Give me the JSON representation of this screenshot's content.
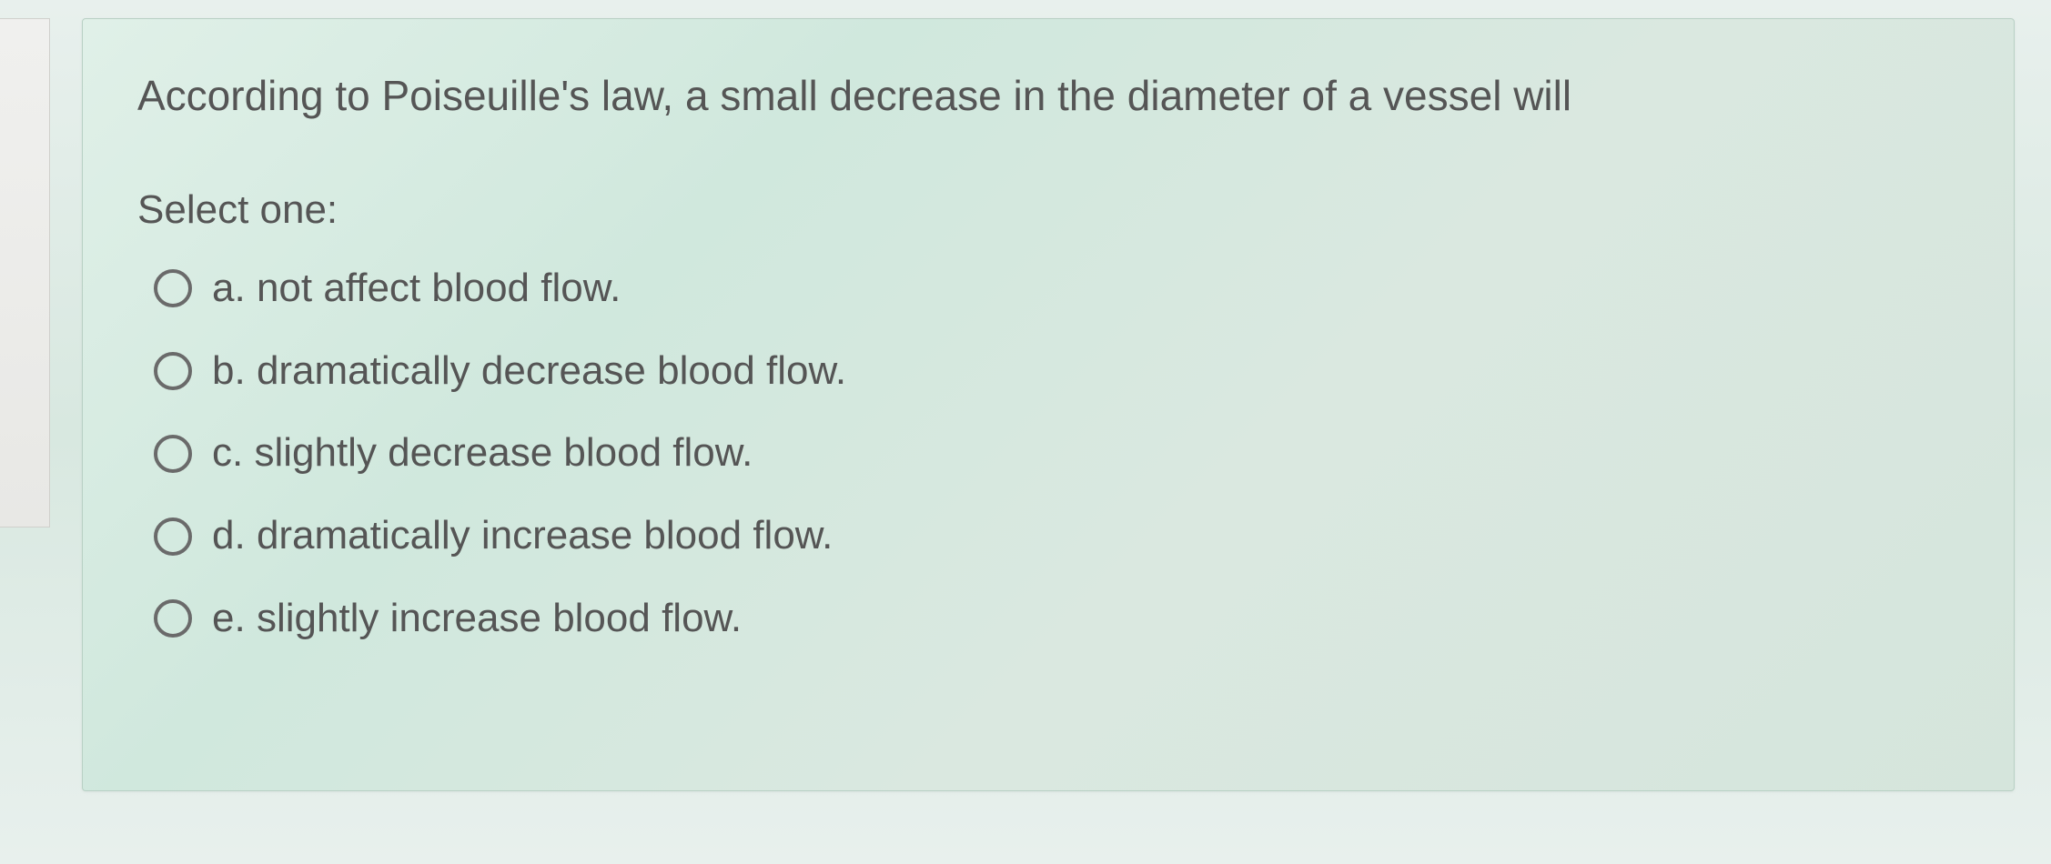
{
  "question": {
    "text": "According to Poiseuille's law, a small decrease in the diameter of a vessel will",
    "selectLabel": "Select one:",
    "options": [
      {
        "letter": "a.",
        "text": "not affect blood flow."
      },
      {
        "letter": "b.",
        "text": "dramatically decrease blood flow."
      },
      {
        "letter": "c.",
        "text": "slightly decrease blood flow."
      },
      {
        "letter": "d.",
        "text": "dramatically increase blood flow."
      },
      {
        "letter": "e.",
        "text": "slightly increase blood flow."
      }
    ]
  },
  "colors": {
    "panelBg": "#d8e8e0",
    "textColor": "#555555",
    "radioBorder": "#6a6a6a",
    "bodyBg": "#e8f0ed"
  }
}
